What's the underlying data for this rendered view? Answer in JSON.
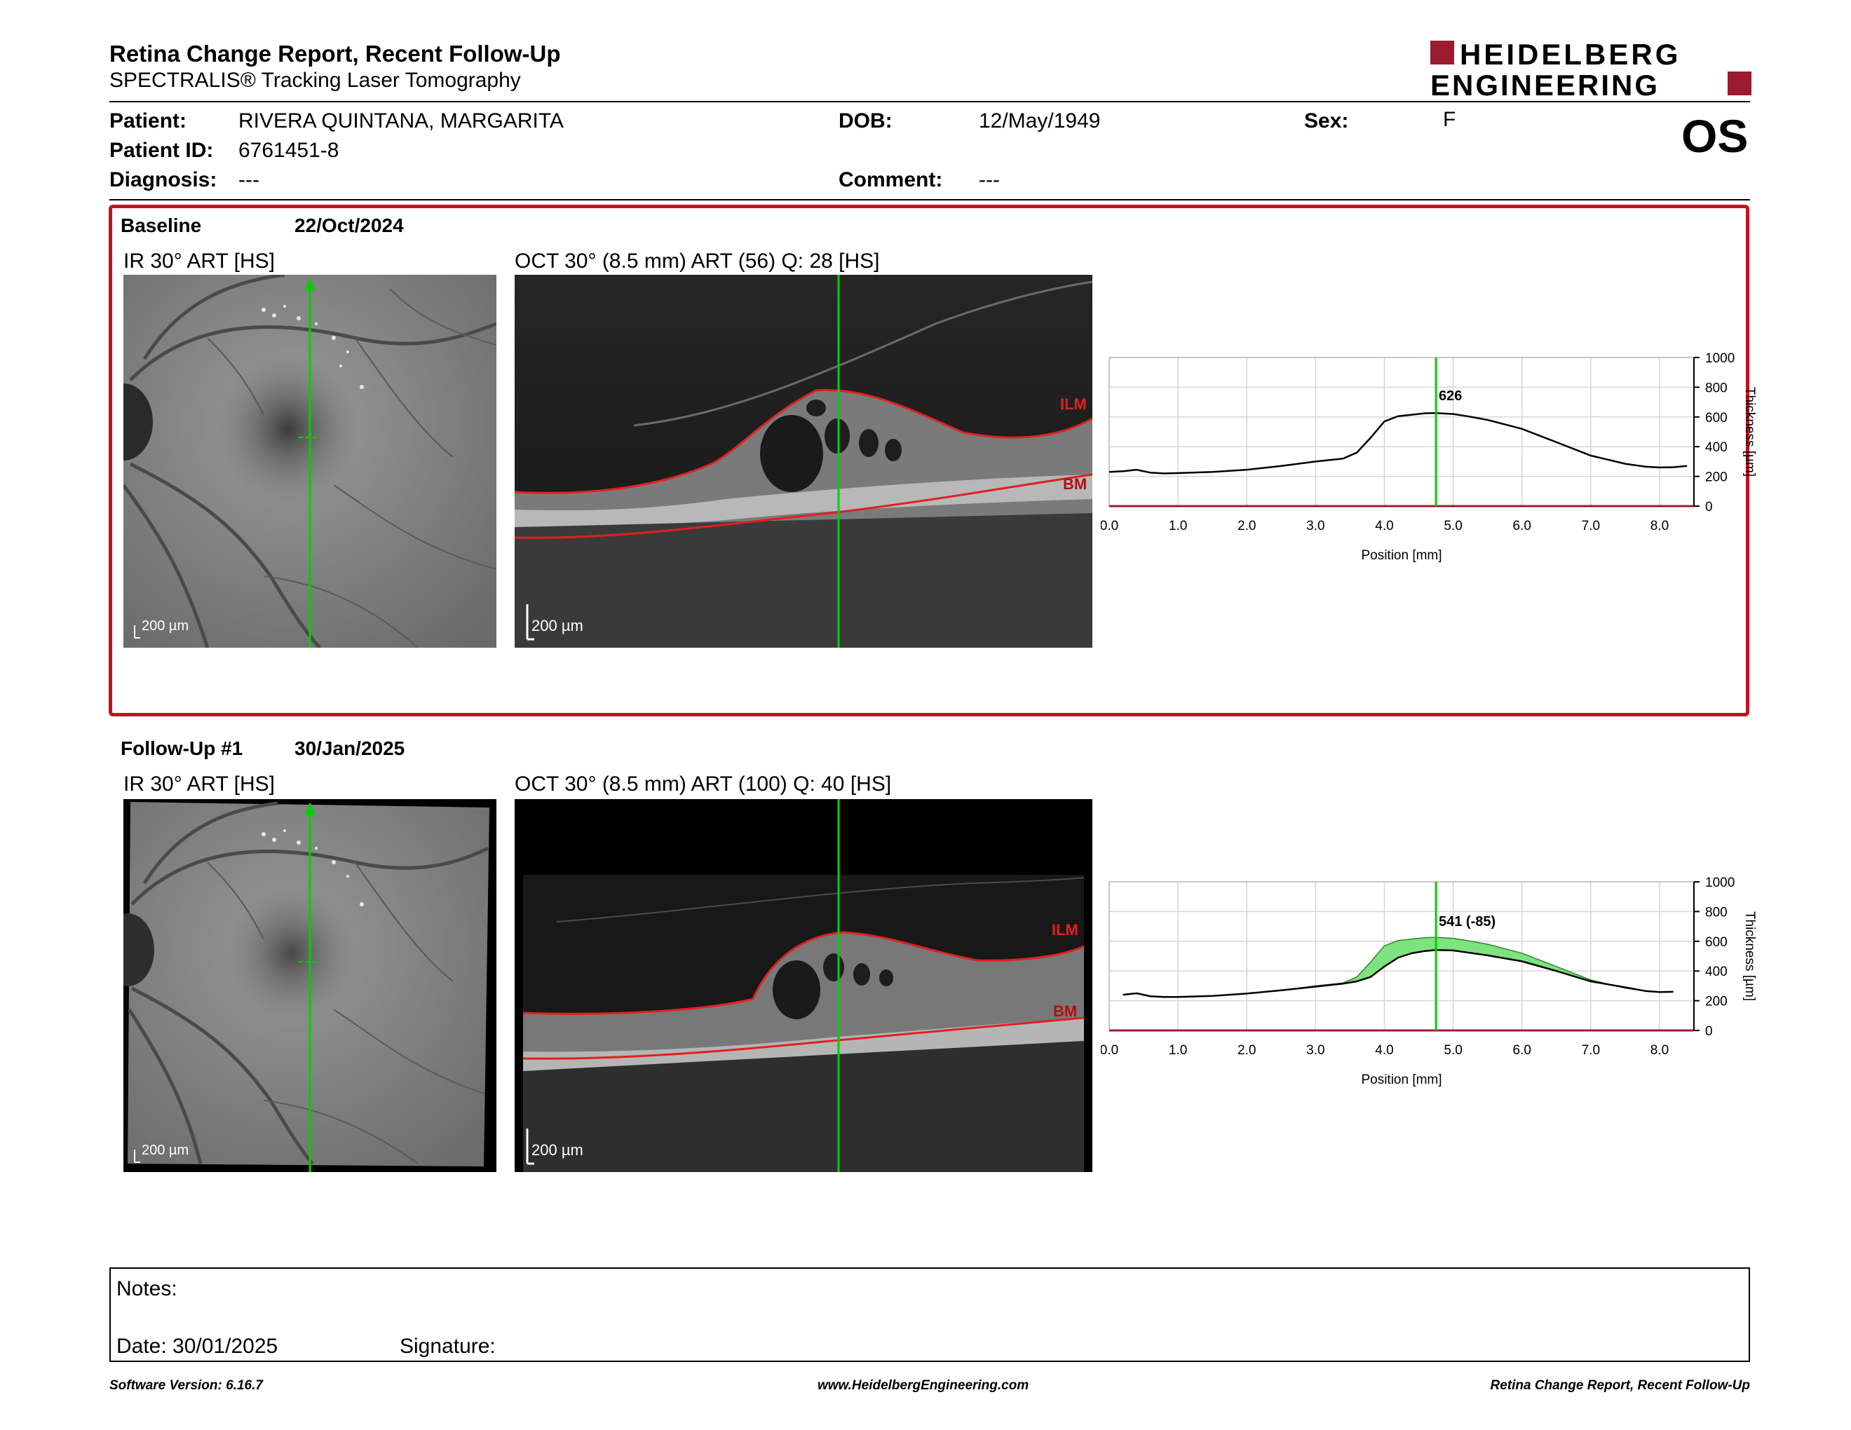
{
  "report": {
    "title": "Retina Change Report, Recent Follow-Up",
    "subtitle": "SPECTRALIS® Tracking Laser Tomography",
    "logo_line1": "HEIDELBERG",
    "logo_line2": "ENGINEERING",
    "eye": "OS"
  },
  "patient": {
    "name_label": "Patient:",
    "name": "RIVERA QUINTANA, MARGARITA",
    "id_label": "Patient ID:",
    "id": "6761451-8",
    "diagnosis_label": "Diagnosis:",
    "diagnosis": "---",
    "dob_label": "DOB:",
    "dob": "12/May/1949",
    "comment_label": "Comment:",
    "comment": "---",
    "sex_label": "Sex:",
    "sex": "F"
  },
  "baseline": {
    "label": "Baseline",
    "date": "22/Oct/2024",
    "ir_caption": "IR 30° ART [HS]",
    "oct_caption": "OCT 30° (8.5 mm) ART (56) Q: 28 [HS]",
    "ir_scale": "200 µm",
    "oct_scale": "200 µm",
    "ilm_label": "ILM",
    "bm_label": "BM",
    "value_label": "626"
  },
  "followup": {
    "label": "Follow-Up #1",
    "date": "30/Jan/2025",
    "ir_caption": "IR 30° ART [HS]",
    "oct_caption": "OCT 30° (8.5 mm) ART (100) Q: 40 [HS]",
    "ir_scale": "200 µm",
    "oct_scale": "200 µm",
    "ilm_label": "ILM",
    "bm_label": "BM",
    "value_label": "541 (-85)"
  },
  "chart_data": [
    {
      "type": "line",
      "name": "baseline-thickness",
      "xlabel": "Position [mm]",
      "ylabel": "Thickness [µm]",
      "xlim": [
        0.0,
        8.5
      ],
      "ylim": [
        0,
        1000
      ],
      "x_ticks": [
        "0.0",
        "1.0",
        "2.0",
        "3.0",
        "4.0",
        "5.0",
        "6.0",
        "7.0",
        "8.0"
      ],
      "y_ticks": [
        "0",
        "200",
        "400",
        "600",
        "800",
        "1000"
      ],
      "grid": true,
      "marker_x": 4.75,
      "series": [
        {
          "x": [
            0.0,
            0.2,
            0.4,
            0.6,
            0.8,
            1.0,
            1.5,
            2.0,
            2.5,
            3.0,
            3.4,
            3.6,
            3.8,
            4.0,
            4.2,
            4.4,
            4.6,
            4.75,
            5.0,
            5.2,
            5.5,
            6.0,
            6.5,
            7.0,
            7.5,
            7.8,
            8.0,
            8.2,
            8.4
          ],
          "y": [
            230,
            235,
            245,
            225,
            220,
            222,
            230,
            245,
            270,
            300,
            320,
            360,
            460,
            570,
            605,
            615,
            625,
            626,
            620,
            605,
            580,
            520,
            430,
            340,
            285,
            265,
            260,
            262,
            270
          ]
        }
      ]
    },
    {
      "type": "area",
      "name": "followup-thickness",
      "xlabel": "Position [mm]",
      "ylabel": "Thickness [µm]",
      "xlim": [
        0.0,
        8.5
      ],
      "ylim": [
        0,
        1000
      ],
      "x_ticks": [
        "0.0",
        "1.0",
        "2.0",
        "3.0",
        "4.0",
        "5.0",
        "6.0",
        "7.0",
        "8.0"
      ],
      "y_ticks": [
        "0",
        "200",
        "400",
        "600",
        "800",
        "1000"
      ],
      "grid": true,
      "marker_x": 4.75,
      "series": [
        {
          "x": [
            0.2,
            0.4,
            0.6,
            0.8,
            1.0,
            1.5,
            2.0,
            2.5,
            3.0,
            3.4,
            3.6,
            3.8,
            4.0,
            4.2,
            4.4,
            4.6,
            4.75,
            5.0,
            5.2,
            5.5,
            6.0,
            6.5,
            7.0,
            7.5,
            7.8,
            8.0,
            8.2
          ],
          "y": [
            240,
            250,
            230,
            225,
            225,
            232,
            248,
            270,
            295,
            315,
            330,
            360,
            430,
            490,
            520,
            535,
            541,
            538,
            525,
            505,
            465,
            400,
            330,
            290,
            265,
            258,
            260
          ]
        },
        {
          "x": [
            0.2,
            0.4,
            0.6,
            0.8,
            1.0,
            1.5,
            2.0,
            2.5,
            3.0,
            3.4,
            3.6,
            3.8,
            4.0,
            4.2,
            4.4,
            4.6,
            4.75,
            5.0,
            5.2,
            5.5,
            6.0,
            6.5,
            7.0,
            7.5,
            7.8,
            8.0,
            8.2
          ],
          "y": [
            240,
            250,
            230,
            225,
            225,
            232,
            248,
            270,
            300,
            320,
            360,
            460,
            570,
            605,
            615,
            625,
            626,
            620,
            605,
            580,
            520,
            430,
            340,
            285,
            265,
            260,
            262
          ]
        }
      ]
    }
  ],
  "notes": {
    "notes_label": "Notes:",
    "date_label": "Date: 30/01/2025",
    "signature_label": "Signature:"
  },
  "footer": {
    "left": "Software Version: 6.16.7",
    "center": "www.HeidelbergEngineering.com",
    "right": "Retina Change Report, Recent Follow-Up"
  },
  "colors": {
    "brand_red": "#9b1b30",
    "frame_red": "#c4121f",
    "marker_green": "#00d000",
    "fill_green": "#7ee37e",
    "ilm_red": "#e02020"
  }
}
